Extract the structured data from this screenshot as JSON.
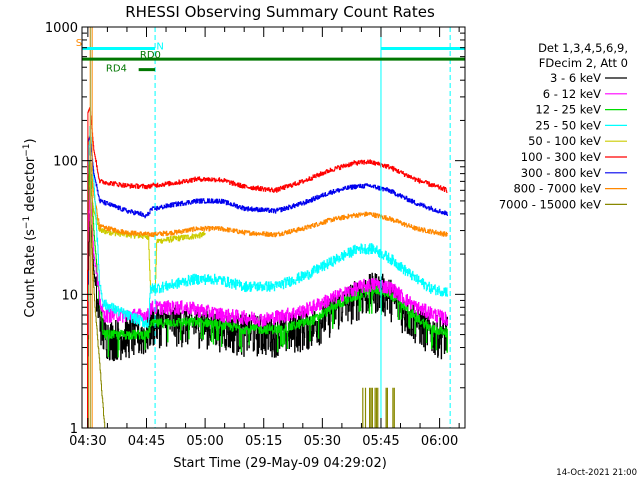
{
  "chart_data": {
    "type": "line",
    "title": "RHESSI Observing Summary Count Rates",
    "xlabel": "Start Time (29-May-09 04:29:02)",
    "ylabel": "Count Rate (s⁻¹ detector⁻¹)",
    "ylabel_main": "Count Rate (s",
    "ylabel_sup1": "−1",
    "ylabel_mid": " detector",
    "ylabel_sup2": "−1",
    "ylabel_end": ")",
    "yscale": "log",
    "ylim": [
      1,
      1000
    ],
    "xlim_minutes": [
      -1.5,
      96.5
    ],
    "x_units": "minutes after 04:30",
    "x_ticks": [
      {
        "m": 0,
        "label": "04:30"
      },
      {
        "m": 15,
        "label": "04:45"
      },
      {
        "m": 30,
        "label": "05:00"
      },
      {
        "m": 45,
        "label": "05:15"
      },
      {
        "m": 60,
        "label": "05:30"
      },
      {
        "m": 75,
        "label": "05:45"
      },
      {
        "m": 90,
        "label": "06:00"
      }
    ],
    "y_ticks": [
      {
        "v": 1,
        "label": "1"
      },
      {
        "v": 10,
        "label": "10"
      },
      {
        "v": 100,
        "label": "100"
      },
      {
        "v": 1000,
        "label": "1000"
      }
    ],
    "legend": {
      "placement": "right",
      "header": [
        "Det 1,3,4,5,6,9,",
        "FDecim 2, Att 0"
      ]
    },
    "series": [
      {
        "name": "3 - 6 keV",
        "color": "#000000",
        "noise": 0.35,
        "dips": false,
        "points": [
          [
            -0.2,
            1
          ],
          [
            0,
            12
          ],
          [
            0.5,
            40
          ],
          [
            1.5,
            15
          ],
          [
            2.5,
            8
          ],
          [
            4,
            5
          ],
          [
            6,
            4.8
          ],
          [
            10,
            5
          ],
          [
            14,
            5
          ],
          [
            15.5,
            5.2
          ],
          [
            16,
            6
          ],
          [
            20,
            6.2
          ],
          [
            30,
            6
          ],
          [
            40,
            5.2
          ],
          [
            50,
            5.2
          ],
          [
            58,
            6
          ],
          [
            64,
            8
          ],
          [
            70,
            10
          ],
          [
            74,
            11
          ],
          [
            77,
            10
          ],
          [
            82,
            7
          ],
          [
            88,
            5.2
          ],
          [
            92,
            5
          ]
        ]
      },
      {
        "name": "6 - 12 keV",
        "color": "#ff00ff",
        "noise": 0.12,
        "dips": false,
        "points": [
          [
            -0.2,
            1
          ],
          [
            0,
            25
          ],
          [
            0.5,
            60
          ],
          [
            1.5,
            20
          ],
          [
            3,
            9
          ],
          [
            4,
            7
          ],
          [
            10,
            7
          ],
          [
            15.5,
            7
          ],
          [
            16,
            8
          ],
          [
            25,
            8
          ],
          [
            35,
            7
          ],
          [
            45,
            6.5
          ],
          [
            55,
            7.5
          ],
          [
            63,
            9.5
          ],
          [
            70,
            11.5
          ],
          [
            74,
            12
          ],
          [
            78,
            11
          ],
          [
            84,
            8
          ],
          [
            92,
            6.5
          ]
        ]
      },
      {
        "name": "12 - 25 keV",
        "color": "#00dd00",
        "noise": 0.08,
        "dips": true,
        "points": [
          [
            -0.2,
            1
          ],
          [
            0,
            50
          ],
          [
            0.5,
            100
          ],
          [
            1.5,
            30
          ],
          [
            3,
            8
          ],
          [
            4,
            5
          ],
          [
            10,
            5
          ],
          [
            15.5,
            5
          ],
          [
            16,
            6
          ],
          [
            22,
            6.2
          ],
          [
            30,
            6.2
          ],
          [
            40,
            5.5
          ],
          [
            50,
            5.5
          ],
          [
            58,
            6.5
          ],
          [
            64,
            8.5
          ],
          [
            70,
            10.2
          ],
          [
            74,
            10.8
          ],
          [
            77,
            10.2
          ],
          [
            82,
            7.5
          ],
          [
            88,
            5.5
          ],
          [
            92,
            5.2
          ]
        ]
      },
      {
        "name": "25 - 50 keV",
        "color": "#00ffff",
        "noise": 0.09,
        "dips": false,
        "points": [
          [
            -0.2,
            1
          ],
          [
            0,
            80
          ],
          [
            0.5,
            180
          ],
          [
            1.5,
            70
          ],
          [
            3,
            12
          ],
          [
            4,
            8.5
          ],
          [
            10,
            7
          ],
          [
            15.5,
            6
          ],
          [
            16,
            11
          ],
          [
            20,
            11.5
          ],
          [
            27,
            13
          ],
          [
            33,
            13
          ],
          [
            40,
            11.5
          ],
          [
            48,
            11.5
          ],
          [
            56,
            14
          ],
          [
            63,
            18
          ],
          [
            69,
            22
          ],
          [
            73,
            22
          ],
          [
            78,
            18
          ],
          [
            84,
            13
          ],
          [
            88,
            11
          ],
          [
            92,
            10.5
          ]
        ]
      },
      {
        "name": "50 - 100 keV",
        "color": "#cccc00",
        "noise": 0.05,
        "dips": false,
        "points": [
          [
            -0.2,
            1
          ],
          [
            0,
            75
          ],
          [
            0.6,
            62
          ],
          [
            1.5,
            42
          ],
          [
            3,
            30
          ],
          [
            10,
            28
          ],
          [
            15.5,
            27
          ],
          [
            16,
            11
          ],
          [
            17.2,
            11
          ],
          [
            17.6,
            25
          ],
          [
            30,
            28
          ]
        ]
      },
      {
        "name": "100 - 300 keV",
        "color": "#ff0000",
        "noise": 0.04,
        "dips": false,
        "points": [
          [
            -0.2,
            1
          ],
          [
            0,
            230
          ],
          [
            0.5,
            250
          ],
          [
            1.5,
            120
          ],
          [
            3,
            70
          ],
          [
            10,
            65
          ],
          [
            15.5,
            64
          ],
          [
            16,
            65
          ],
          [
            22,
            68
          ],
          [
            28,
            73
          ],
          [
            34,
            72
          ],
          [
            40,
            64
          ],
          [
            48,
            60
          ],
          [
            55,
            70
          ],
          [
            62,
            85
          ],
          [
            68,
            96
          ],
          [
            72,
            98
          ],
          [
            77,
            90
          ],
          [
            84,
            72
          ],
          [
            92,
            60
          ]
        ]
      },
      {
        "name": "300 - 800 keV",
        "color": "#0000ee",
        "noise": 0.04,
        "dips": false,
        "points": [
          [
            -0.2,
            1
          ],
          [
            0,
            140
          ],
          [
            0.5,
            150
          ],
          [
            1.5,
            80
          ],
          [
            3,
            50
          ],
          [
            10,
            42
          ],
          [
            13.5,
            40
          ],
          [
            14.5,
            38
          ],
          [
            15,
            39
          ],
          [
            15.5,
            40
          ],
          [
            16,
            43
          ],
          [
            22,
            47
          ],
          [
            28,
            50
          ],
          [
            34,
            50
          ],
          [
            40,
            44
          ],
          [
            48,
            42
          ],
          [
            55,
            48
          ],
          [
            62,
            58
          ],
          [
            68,
            64
          ],
          [
            72,
            65
          ],
          [
            77,
            60
          ],
          [
            84,
            48
          ],
          [
            92,
            40
          ]
        ]
      },
      {
        "name": "800 - 7000 keV",
        "color": "#ff8800",
        "noise": 0.04,
        "dips": false,
        "points": [
          [
            -0.2,
            1
          ],
          [
            0,
            150
          ],
          [
            0.5,
            110
          ],
          [
            1.5,
            55
          ],
          [
            3,
            32
          ],
          [
            10,
            29
          ],
          [
            16,
            28
          ],
          [
            22,
            29
          ],
          [
            28,
            31
          ],
          [
            34,
            31
          ],
          [
            40,
            29
          ],
          [
            48,
            28
          ],
          [
            55,
            31
          ],
          [
            62,
            36
          ],
          [
            68,
            39
          ],
          [
            72,
            40
          ],
          [
            77,
            37
          ],
          [
            84,
            31
          ],
          [
            92,
            28
          ]
        ]
      },
      {
        "name": "7000 - 15000 keV",
        "color": "#888800",
        "noise": 0.04,
        "dips": false,
        "points": [
          [
            0,
            1
          ],
          [
            0.3,
            100
          ],
          [
            0.8,
            25
          ],
          [
            1.8,
            8
          ],
          [
            3,
            3
          ],
          [
            3.8,
            1.5
          ],
          [
            4.3,
            1
          ]
        ]
      }
    ],
    "olive_bursts": {
      "m_range": [
        70,
        79
      ],
      "value": 2
    },
    "cyan_verticals": [
      {
        "m": 0.7,
        "style": "solid"
      },
      {
        "m": 17.2,
        "style": "dashed"
      },
      {
        "m": 75,
        "style": "solid"
      },
      {
        "m": 92.7,
        "style": "dashed"
      }
    ],
    "orange_verticals": [
      {
        "m": 0.6
      },
      {
        "m": 1.1
      }
    ],
    "flags": [
      {
        "label": "S",
        "color": "#ff8800",
        "m0": -1.5,
        "m1": -0.5,
        "v": 690,
        "label_m": -2.3,
        "label_v": 720
      },
      {
        "label": "N",
        "color": "#00ffff",
        "m0": -1.5,
        "m1": 17.2,
        "v": 690,
        "label_m": 18.5,
        "label_v": 680
      },
      {
        "label": "",
        "color": "#00ffff",
        "m0": 75,
        "m1": 96.5,
        "v": 690,
        "label_m": 0,
        "label_v": 0
      },
      {
        "label": "RD0",
        "color": "#007700",
        "m0": -1.5,
        "m1": 96.5,
        "v": 575,
        "label_m": 16.0,
        "label_v": 585
      },
      {
        "label": "RD4",
        "color": "#007700",
        "m0": 13.0,
        "m1": 17.2,
        "v": 480,
        "label_m": 7.3,
        "label_v": 465
      }
    ]
  },
  "footer": {
    "timestamp": "14-Oct-2021 21:00"
  }
}
